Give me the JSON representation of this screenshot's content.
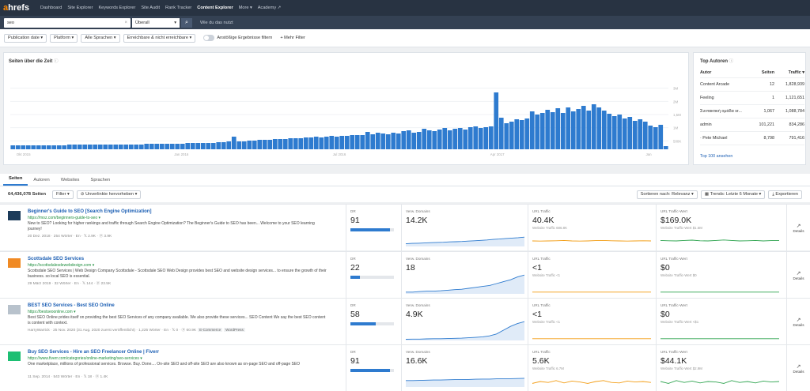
{
  "nav": {
    "logo_a": "a",
    "logo_rest": "hrefs",
    "items": [
      "Dashboard",
      "Site Explorer",
      "Keywords Explorer",
      "Site Audit",
      "Rank Tracker",
      "Content Explorer",
      "More ▾",
      "Academy ↗"
    ]
  },
  "search": {
    "value": "seo",
    "clear": "×",
    "mode": "Überall",
    "mode_caret": "▾",
    "go_icon": "⌕",
    "help": "Wie du das nutzt"
  },
  "filters": {
    "publication_date": "Publication date ▾",
    "platform": "Platform ▾",
    "language": "Alle Sprachen ▾",
    "linked": "Erreichbare & nicht erreichbare ▾",
    "only_live": "Anstößige Ergebnisse filtern",
    "more": "+ Mehr Filter"
  },
  "timeline": {
    "title": "Seiten über die Zeit",
    "info_icon": "ⓘ",
    "x_labels": [
      "Okt 2015",
      "Jan 2016",
      "Jul 2016",
      "Apr 2017",
      "Jan"
    ],
    "y_labels": [
      "3M",
      "2M",
      "1,5M",
      "1M",
      "500K"
    ],
    "color": "#2e7bcf",
    "values": [
      5,
      5,
      5,
      5,
      5,
      5,
      5,
      5,
      5,
      5,
      5,
      6,
      6,
      6,
      6,
      6,
      6,
      6,
      6,
      6,
      6,
      6,
      6,
      6,
      6,
      6,
      7,
      7,
      7,
      7,
      7,
      7,
      7,
      7,
      8,
      8,
      8,
      8,
      8,
      8,
      9,
      9,
      10,
      16,
      10,
      10,
      11,
      11,
      12,
      12,
      12,
      13,
      13,
      13,
      14,
      14,
      14,
      15,
      15,
      16,
      15,
      16,
      17,
      16,
      17,
      17,
      18,
      18,
      18,
      22,
      19,
      21,
      20,
      19,
      21,
      20,
      23,
      24,
      21,
      22,
      26,
      24,
      23,
      25,
      27,
      24,
      26,
      27,
      25,
      28,
      29,
      27,
      28,
      29,
      72,
      40,
      33,
      35,
      38,
      37,
      39,
      48,
      44,
      46,
      50,
      47,
      52,
      46,
      53,
      48,
      51,
      55,
      49,
      57,
      53,
      49,
      45,
      42,
      44,
      39,
      41,
      36,
      38,
      35,
      30,
      28,
      31,
      4
    ]
  },
  "top_authors": {
    "title": "Top Autoren",
    "info_icon": "ⓘ",
    "headers": [
      "Autor",
      "Seiten",
      "Traffic ▾"
    ],
    "rows": [
      [
        "Content Arcade",
        "12",
        "1,828,939"
      ],
      [
        "Feeling",
        "1",
        "1,121,651"
      ],
      [
        "Συντακτική ομάδα sr...",
        "1,067",
        "1,088,784"
      ],
      [
        "admin",
        "101,221",
        "834,286"
      ],
      [
        "· Pete Michael",
        "8,798",
        "791,416"
      ]
    ],
    "footer_link": "Top 100 ansehen"
  },
  "tabs": [
    "Seiten",
    "Autoren",
    "Websites",
    "Sprachen"
  ],
  "list": {
    "count": "64,436,078 Seiten",
    "filter": "Filter ▾",
    "highlight": "⊘ Unverlinkte hervorheben ▾",
    "sort": "Sortieren nach: Relevanz ▾",
    "trends": "▦ Trends: Letzte 6 Monate ▾",
    "export": "⤓ Exportieren"
  },
  "results": [
    {
      "title": "Beginner's Guide to SEO [Search Engine Optimization]",
      "url": "https://moz.com/beginners-guide-to-seo ▾",
      "desc_plain": "New to SEO? Looking for higher rankings and traffic through Search Engine Optimization? The Beginner's Guide to SEO has been... Welcome to your SEO learning journey!",
      "meta": "20 Dez. 2018 · 254 Wörter · En · 𝕏 2.9K · ⓟ 3.9K",
      "tags": [],
      "dr": "91",
      "dr_fill": 0.91,
      "ref_domains": "14.2K",
      "url_traffic": "40.4K",
      "url_traffic_sub": "Website Traffic 686.8K",
      "traffic_value": "$169.0K",
      "traffic_value_sub": "Website Traffic-Wert $1.6M",
      "thumb_color": "#1c3b5a"
    },
    {
      "title": "Scottsdale SEO Services",
      "url": "https://scottsdalesdewebdesign.com ▾",
      "desc_plain": "Scottsdale SEO Services | Web Design Company Scottsdale - Scottsdale SEO Web Design provides best SEO and website design services... to ensure the growth of their business. so local SEO is essential.",
      "meta": "29 März 2019 · 32 Wörter · En · 𝕏 144 · ⓟ 23.5K",
      "tags": [],
      "dr": "22",
      "dr_fill": 0.22,
      "ref_domains": "18",
      "url_traffic": "<1",
      "url_traffic_sub": "Website Traffic <1",
      "traffic_value": "$0",
      "traffic_value_sub": "Website Traffic-Wert $0",
      "thumb_color": "#f08a24"
    },
    {
      "title": "BEST SEO Services - Best SEO Online",
      "url": "https://bestseoonline.com ▾",
      "desc_plain": "Best SEO Online prides itself on providing the best SEO Services of any company available. We also provide these services... SEO Content We say the best SEO content is content with context.",
      "meta": "HarryWarrick · 25 Nov. 2020 (31 Aug. 2020 zuerst veröffentlicht) · 1,225 Wörter · En · 𝕏 0 · ⓟ 60.9K",
      "tags": [
        "E-Commerce",
        "WordPress"
      ],
      "dr": "58",
      "dr_fill": 0.58,
      "ref_domains": "4.9K",
      "url_traffic": "<1",
      "url_traffic_sub": "Website Traffic <1",
      "traffic_value": "$0",
      "traffic_value_sub": "Website Traffic-Wert <$1",
      "thumb_color": "#b8c2cc"
    },
    {
      "title": "Buy SEO Services - Hire an SEO Freelancer Online | Fiverr",
      "url": "https://www.fiverr.com/categories/online-marketing/seo-services ▾",
      "desc_plain": "One marketplace, millions of professional services. Browse. Buy. Done.... On-site SEO and off-site SEO are also known as on-page SEO and off-page SEO",
      "meta": "11 Sep. 2014 · 543 Wörter · En · 𝕏 18 · ⓟ 1.4K",
      "tags": [],
      "dr": "91",
      "dr_fill": 0.91,
      "ref_domains": "16.6K",
      "url_traffic": "5.6K",
      "url_traffic_sub": "Website Traffic 6.7M",
      "traffic_value": "$44.1K",
      "traffic_value_sub": "Website Traffic-Wert $2.9M",
      "thumb_color": "#1dbf73"
    }
  ],
  "labels": {
    "dr": "DR",
    "ref_domains": "Verw. Domains",
    "url_traffic": "URL Traffic",
    "traffic_value": "URL Traffic-Wert",
    "details": "Details",
    "details_icon": "↗"
  },
  "colors": {
    "accent": "#2e7bcf",
    "traffic_line": "#f39c12",
    "value_line": "#2ea44f",
    "domains_line": "#2e7bcf"
  }
}
